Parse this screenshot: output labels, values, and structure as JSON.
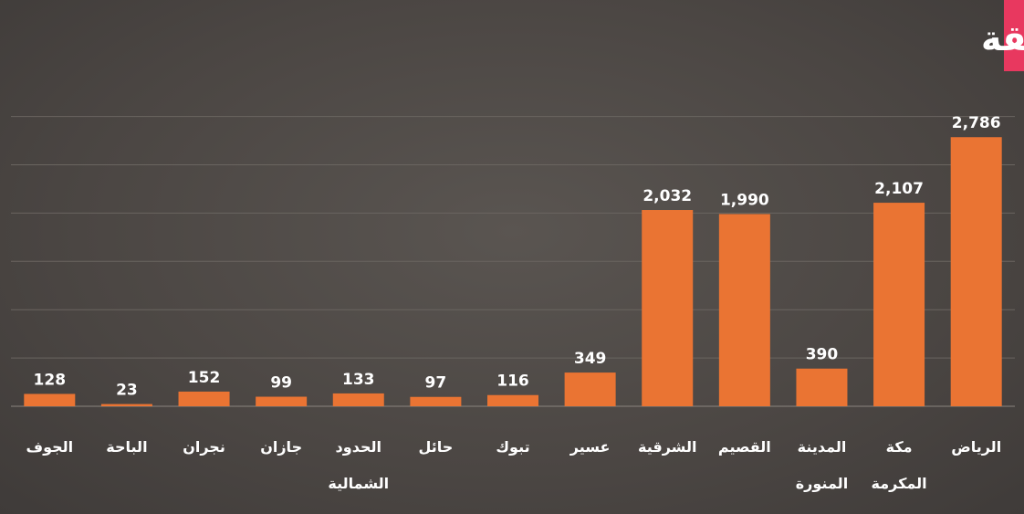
{
  "chart_data": {
    "type": "bar",
    "title": "عدد تراخيص أنشطة قطاع نقل البضائع والبريد حسب المنطقة",
    "xlabel": "",
    "ylabel": "",
    "ylim": [
      0,
      3000
    ],
    "grid": true,
    "categories": [
      [
        "الرياض"
      ],
      [
        "مكة",
        "المكرمة"
      ],
      [
        "المدينة",
        "المنورة"
      ],
      [
        "القصيم"
      ],
      [
        "الشرقية"
      ],
      [
        "عسير"
      ],
      [
        "تبوك"
      ],
      [
        "حائل"
      ],
      [
        "الحدود",
        "الشمالية"
      ],
      [
        "جازان"
      ],
      [
        "نجران"
      ],
      [
        "الباحة"
      ],
      [
        "الجوف"
      ]
    ],
    "values": [
      2786,
      2107,
      390,
      1990,
      2032,
      349,
      116,
      97,
      133,
      99,
      152,
      23,
      128
    ],
    "value_labels": [
      "2,786",
      "2,107",
      "390",
      "1,990",
      "2,032",
      "349",
      "116",
      "97",
      "133",
      "99",
      "152",
      "23",
      "128"
    ],
    "colors": {
      "bar": "#ea7433",
      "accent": "#e8385f",
      "text": "#ffffff"
    }
  }
}
